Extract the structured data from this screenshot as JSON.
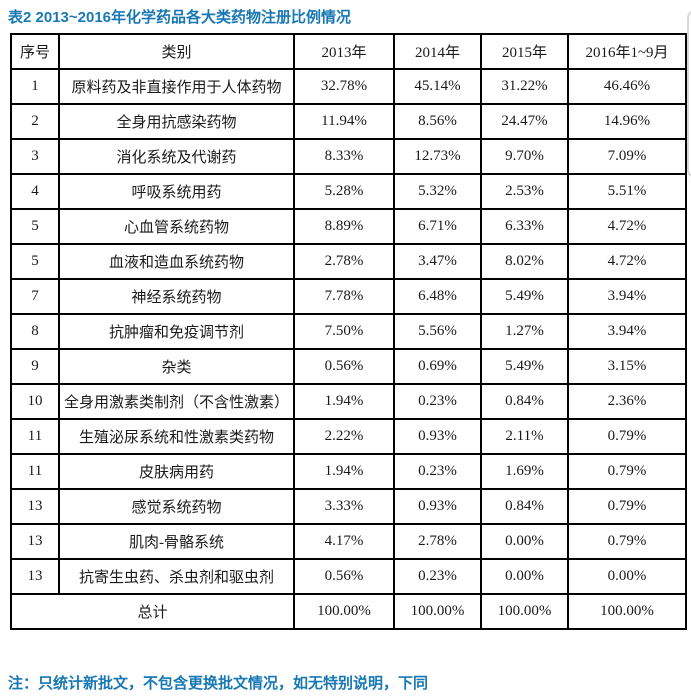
{
  "title": "表2 2013~2016年化学药品各大类药物注册比例情况",
  "note": "注：只统计新批文，不包含更换批文情况，如无特别说明，下同",
  "colors": {
    "accent": "#1878b4",
    "table_border": "#000000",
    "panel_edge": "#d8d8d8"
  },
  "table": {
    "headers": [
      "序号",
      "类别",
      "2013年",
      "2014年",
      "2015年",
      "2016年1~9月"
    ],
    "rows": [
      {
        "no": "1",
        "category": "原料药及非直接作用于人体药物",
        "values": [
          "32.78%",
          "45.14%",
          "31.22%",
          "46.46%"
        ]
      },
      {
        "no": "2",
        "category": "全身用抗感染药物",
        "values": [
          "11.94%",
          "8.56%",
          "24.47%",
          "14.96%"
        ]
      },
      {
        "no": "3",
        "category": "消化系统及代谢药",
        "values": [
          "8.33%",
          "12.73%",
          "9.70%",
          "7.09%"
        ]
      },
      {
        "no": "4",
        "category": "呼吸系统用药",
        "values": [
          "5.28%",
          "5.32%",
          "2.53%",
          "5.51%"
        ]
      },
      {
        "no": "5",
        "category": "心血管系统药物",
        "values": [
          "8.89%",
          "6.71%",
          "6.33%",
          "4.72%"
        ]
      },
      {
        "no": "5",
        "category": "血液和造血系统药物",
        "values": [
          "2.78%",
          "3.47%",
          "8.02%",
          "4.72%"
        ]
      },
      {
        "no": "7",
        "category": "神经系统药物",
        "values": [
          "7.78%",
          "6.48%",
          "5.49%",
          "3.94%"
        ]
      },
      {
        "no": "8",
        "category": "抗肿瘤和免疫调节剂",
        "values": [
          "7.50%",
          "5.56%",
          "1.27%",
          "3.94%"
        ]
      },
      {
        "no": "9",
        "category": "杂类",
        "values": [
          "0.56%",
          "0.69%",
          "5.49%",
          "3.15%"
        ]
      },
      {
        "no": "10",
        "category": "全身用激素类制剂（不含性激素）",
        "values": [
          "1.94%",
          "0.23%",
          "0.84%",
          "2.36%"
        ]
      },
      {
        "no": "11",
        "category": "生殖泌尿系统和性激素类药物",
        "values": [
          "2.22%",
          "0.93%",
          "2.11%",
          "0.79%"
        ]
      },
      {
        "no": "11",
        "category": "皮肤病用药",
        "values": [
          "1.94%",
          "0.23%",
          "1.69%",
          "0.79%"
        ]
      },
      {
        "no": "13",
        "category": "感觉系统药物",
        "values": [
          "3.33%",
          "0.93%",
          "0.84%",
          "0.79%"
        ]
      },
      {
        "no": "13",
        "category": "肌肉-骨骼系统",
        "values": [
          "4.17%",
          "2.78%",
          "0.00%",
          "0.79%"
        ]
      },
      {
        "no": "13",
        "category": "抗寄生虫药、杀虫剂和驱虫剂",
        "values": [
          "0.56%",
          "0.23%",
          "0.00%",
          "0.00%"
        ]
      }
    ],
    "total": {
      "label": "总计",
      "values": [
        "100.00%",
        "100.00%",
        "100.00%",
        "100.00%"
      ]
    }
  }
}
